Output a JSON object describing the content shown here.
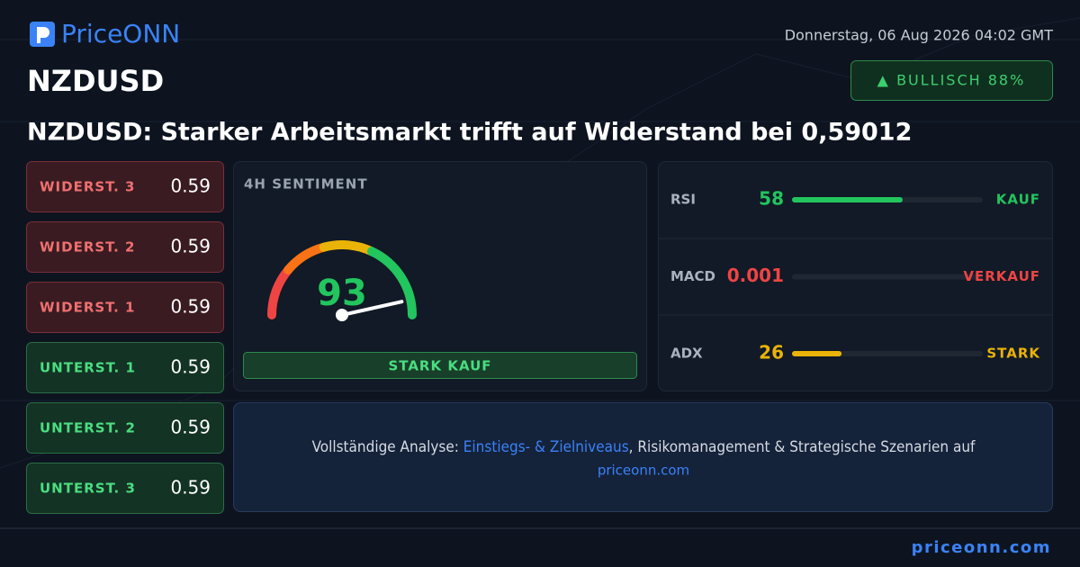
{
  "header": {
    "logo": "PriceONN",
    "date": "Donnerstag, 06 Aug 2026 04:02 GMT",
    "symbol": "NZDUSD",
    "badge": "▲ BULLISCH 88%",
    "headline": "NZDUSD: Starker Arbeitsmarkt trifft auf Widerstand bei 0,59012"
  },
  "levels": [
    {
      "label": "WIDERST. 3",
      "value": "0.59",
      "color": "#f07070"
    },
    {
      "label": "WIDERST. 2",
      "value": "0.59",
      "color": "#f07070"
    },
    {
      "label": "WIDERST. 1",
      "value": "0.59",
      "color": "#f07070"
    },
    {
      "label": "UNTERST. 1",
      "value": "0.59",
      "color": "#4ade80"
    },
    {
      "label": "UNTERST. 2",
      "value": "0.59",
      "color": "#4ade80"
    },
    {
      "label": "UNTERST. 3",
      "value": "0.59",
      "color": "#4ade80"
    }
  ],
  "sentiment": {
    "title": "4H SENTIMENT",
    "score": 93,
    "signal": "STARK KAUF"
  },
  "indicators": [
    {
      "name": "RSI",
      "value": 58,
      "signal": "KAUF",
      "color": "#22c55e"
    },
    {
      "name": "MACD",
      "value": 0.001,
      "signal": "VERKAUF",
      "color": "#ef4444"
    },
    {
      "name": "ADX",
      "value": 26,
      "signal": "STARK",
      "color": "#eab308"
    }
  ],
  "cta": {
    "prefix": "Vollständige Analyse: ",
    "link": "Einstiegs- & Zielniveaus",
    "suffix": ", Risikomanagement & Strategische Szenarien auf",
    "url": "priceonn.com"
  },
  "footer": "priceonn.com"
}
